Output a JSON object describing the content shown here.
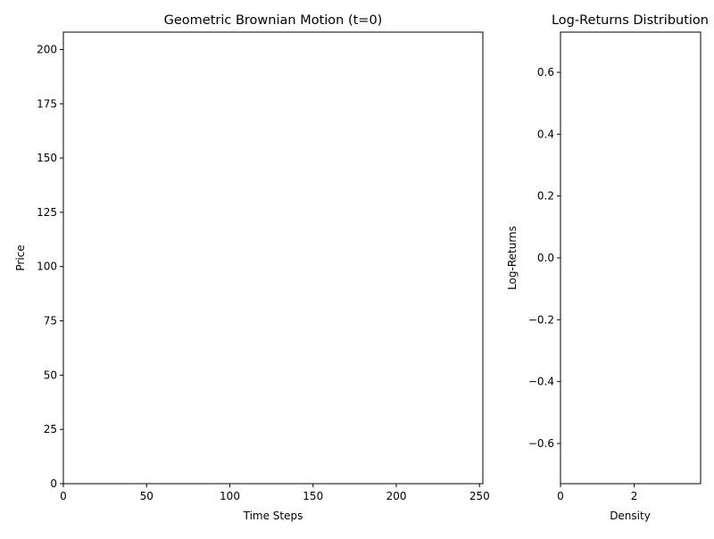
{
  "chart_data": [
    {
      "type": "line",
      "title": "Geometric Brownian Motion (t=0)",
      "xlabel": "Time Steps",
      "ylabel": "Price",
      "xlim": [
        0,
        252
      ],
      "ylim": [
        0,
        208
      ],
      "xticks": [
        0,
        50,
        100,
        150,
        200,
        250
      ],
      "yticks": [
        0,
        25,
        50,
        75,
        100,
        125,
        150,
        175,
        200
      ],
      "xtick_labels": [
        "0",
        "50",
        "100",
        "150",
        "200",
        "250"
      ],
      "ytick_labels": [
        "0",
        "25",
        "50",
        "75",
        "100",
        "125",
        "150",
        "175",
        "200"
      ],
      "series": [],
      "grid": false
    },
    {
      "type": "bar",
      "orientation": "horizontal",
      "title": "Log-Returns Distribution",
      "xlabel": "Density",
      "ylabel": "Log-Returns",
      "xlim": [
        0,
        3.8
      ],
      "ylim": [
        -0.73,
        0.73
      ],
      "xticks": [
        0,
        2
      ],
      "yticks": [
        -0.6,
        -0.4,
        -0.2,
        0.0,
        0.2,
        0.4,
        0.6
      ],
      "xtick_labels": [
        "0",
        "2"
      ],
      "ytick_labels": [
        "−0.6",
        "−0.4",
        "−0.2",
        "0.0",
        "0.2",
        "0.4",
        "0.6"
      ],
      "series": [],
      "grid": false
    }
  ]
}
